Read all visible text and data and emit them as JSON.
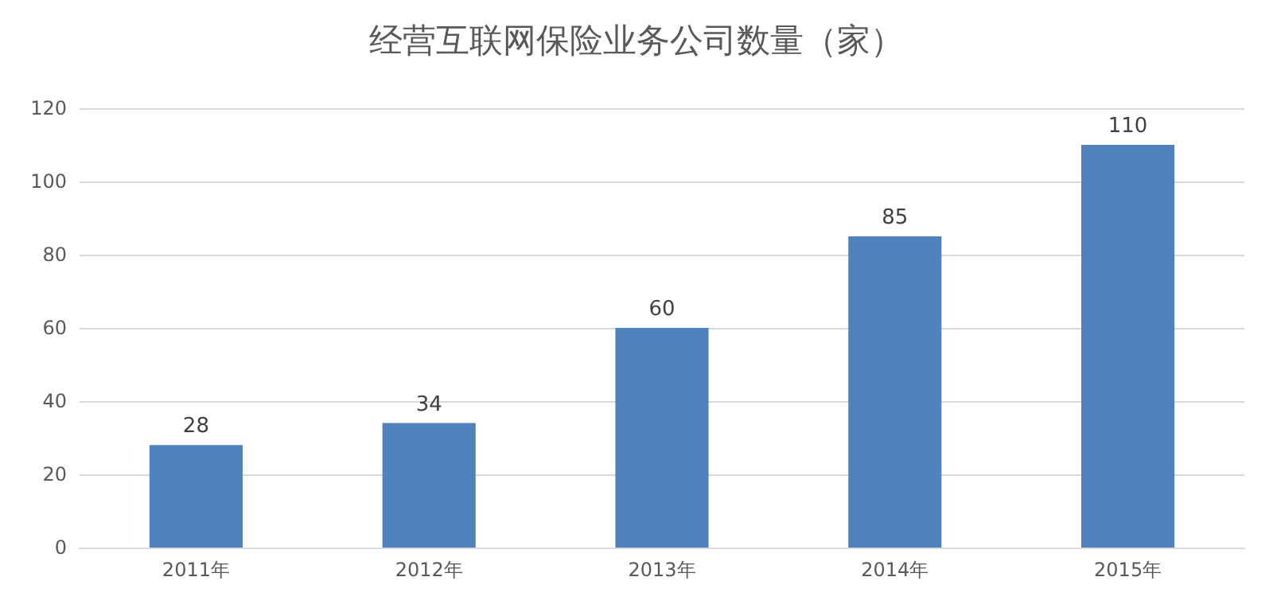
{
  "chart_data": {
    "type": "bar",
    "title": "经营互联网保险业务公司数量（家）",
    "categories": [
      "2011年",
      "2012年",
      "2013年",
      "2014年",
      "2015年"
    ],
    "values": [
      28,
      34,
      60,
      85,
      110
    ],
    "color": "#4f81bd",
    "ylim": [
      0,
      120
    ],
    "yticks": [
      0,
      20,
      40,
      60,
      80,
      100,
      120
    ],
    "grid": "y",
    "data_labels": true
  }
}
